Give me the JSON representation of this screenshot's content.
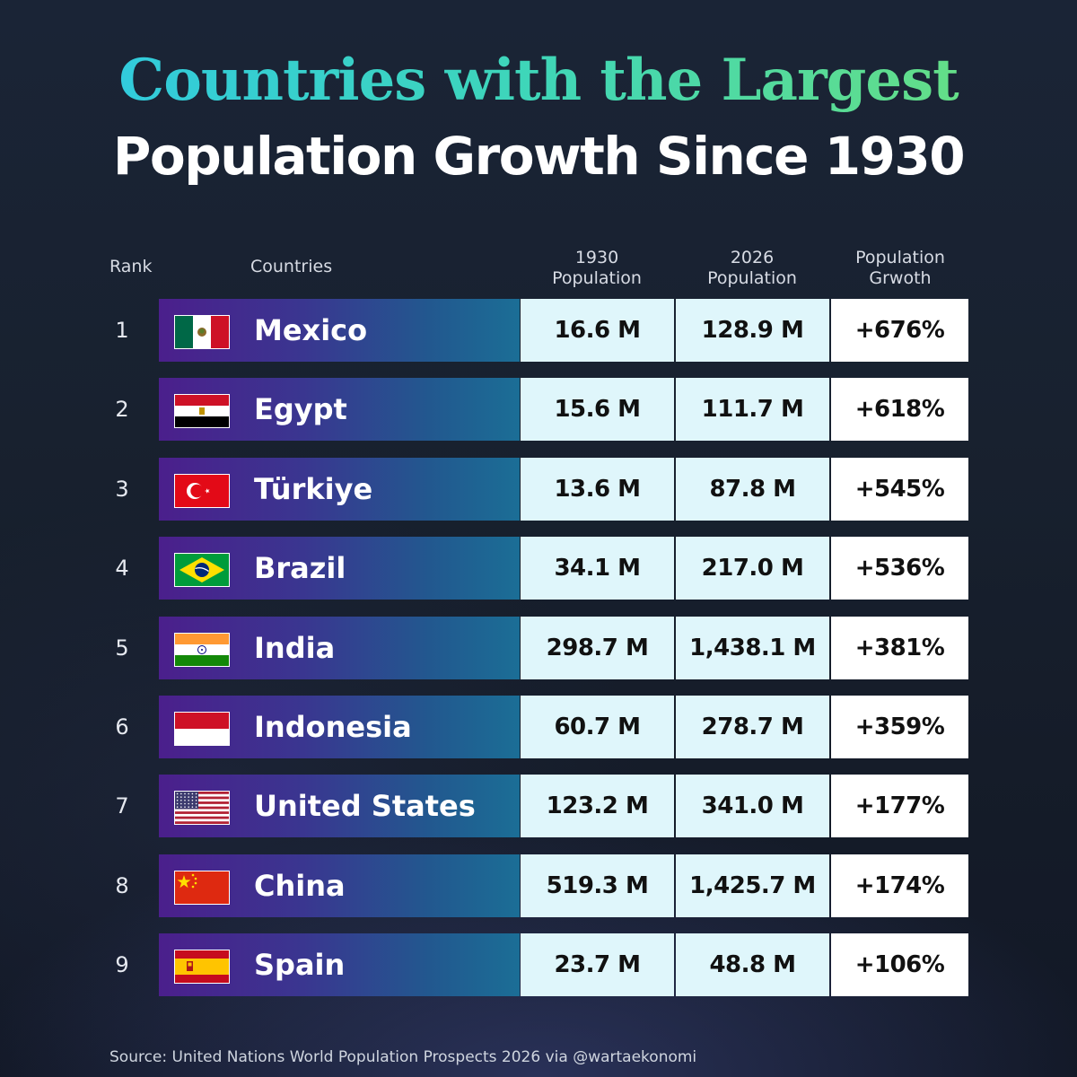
{
  "title_line1": "Countries with the Largest",
  "title_line2": "Population Growth Since 1930",
  "headers": {
    "rank": "Rank",
    "countries": "Countries",
    "pop1930_line1": "1930",
    "pop1930_line2": "Population",
    "pop2026_line1": "2026",
    "pop2026_line2": "Population",
    "growth_line1": "Population",
    "growth_line2": "Grwoth"
  },
  "source": "Source: United Nations World Population Prospects 2026 via @wartaekonomi",
  "colors": {
    "title_gradient_start": "#2ec8e6",
    "title_gradient_end": "#6ee07a",
    "bar_gradient_start": "#4b1f8c",
    "bar_gradient_end": "#1b6e96",
    "population_cell": "#dff6fb",
    "growth_cell": "#ffffff"
  },
  "chart_data": {
    "type": "table",
    "columns": [
      "Rank",
      "Countries",
      "1930 Population",
      "2026 Population",
      "Population Grwoth"
    ],
    "rows": [
      {
        "rank": "1",
        "country": "Mexico",
        "flag": "mexico-flag-icon",
        "pop1930": "16.6 M",
        "pop2026": "128.9 M",
        "growth": "+676%"
      },
      {
        "rank": "2",
        "country": "Egypt",
        "flag": "egypt-flag-icon",
        "pop1930": "15.6 M",
        "pop2026": "111.7 M",
        "growth": "+618%"
      },
      {
        "rank": "3",
        "country": "Türkiye",
        "flag": "turkiye-flag-icon",
        "pop1930": "13.6 M",
        "pop2026": "87.8 M",
        "growth": "+545%"
      },
      {
        "rank": "4",
        "country": "Brazil",
        "flag": "brazil-flag-icon",
        "pop1930": "34.1 M",
        "pop2026": "217.0 M",
        "growth": "+536%"
      },
      {
        "rank": "5",
        "country": "India",
        "flag": "india-flag-icon",
        "pop1930": "298.7 M",
        "pop2026": "1,438.1 M",
        "growth": "+381%"
      },
      {
        "rank": "6",
        "country": "Indonesia",
        "flag": "indonesia-flag-icon",
        "pop1930": "60.7 M",
        "pop2026": "278.7 M",
        "growth": "+359%"
      },
      {
        "rank": "7",
        "country": "United States",
        "flag": "united-states-flag-icon",
        "pop1930": "123.2 M",
        "pop2026": "341.0 M",
        "growth": "+177%"
      },
      {
        "rank": "8",
        "country": "China",
        "flag": "china-flag-icon",
        "pop1930": "519.3 M",
        "pop2026": "1,425.7 M",
        "growth": "+174%"
      },
      {
        "rank": "9",
        "country": "Spain",
        "flag": "spain-flag-icon",
        "pop1930": "23.7 M",
        "pop2026": "48.8 M",
        "growth": "+106%"
      }
    ]
  }
}
